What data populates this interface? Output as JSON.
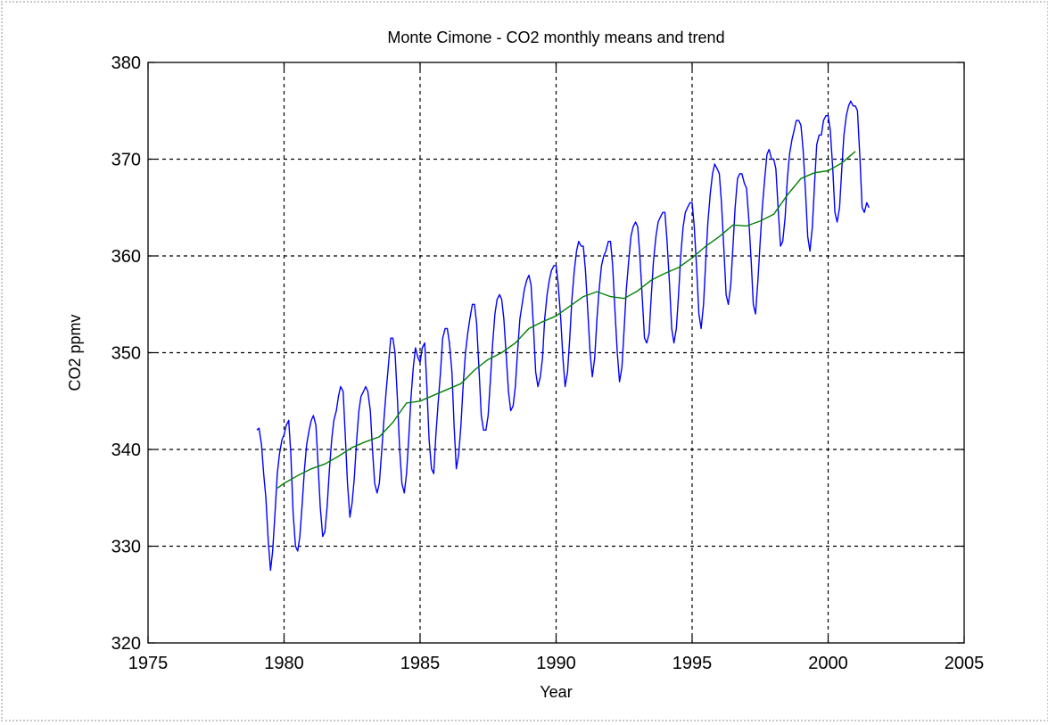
{
  "chart_data": {
    "type": "line",
    "title": "Monte Cimone - CO2 monthly means and trend",
    "xlabel": "Year",
    "ylabel": "CO2 ppmv",
    "xlim": [
      1975,
      2005
    ],
    "ylim": [
      320,
      380
    ],
    "xticks": [
      1975,
      1980,
      1985,
      1990,
      1995,
      2000,
      2005
    ],
    "yticks": [
      320,
      330,
      340,
      350,
      360,
      370,
      380
    ],
    "grid": true,
    "grid_style": "dashed",
    "legend": "none",
    "colors": {
      "monthly": "#0000ff",
      "trend": "#008000",
      "grid": "#000000"
    },
    "series": [
      {
        "key": "monthly",
        "color": "#0000ff",
        "x": [
          1979.0,
          1979.08,
          1979.17,
          1979.25,
          1979.33,
          1979.42,
          1979.5,
          1979.58,
          1979.67,
          1979.75,
          1979.83,
          1979.92,
          1980.0,
          1980.08,
          1980.17,
          1980.25,
          1980.33,
          1980.42,
          1980.5,
          1980.58,
          1980.67,
          1980.75,
          1980.83,
          1980.92,
          1981.0,
          1981.08,
          1981.17,
          1981.25,
          1981.33,
          1981.42,
          1981.5,
          1981.58,
          1981.67,
          1981.75,
          1981.83,
          1981.92,
          1982.0,
          1982.08,
          1982.17,
          1982.25,
          1982.33,
          1982.42,
          1982.5,
          1982.58,
          1982.67,
          1982.75,
          1982.83,
          1982.92,
          1983.0,
          1983.08,
          1983.17,
          1983.25,
          1983.33,
          1983.42,
          1983.5,
          1983.58,
          1983.67,
          1983.75,
          1983.83,
          1983.92,
          1984.0,
          1984.08,
          1984.17,
          1984.25,
          1984.33,
          1984.42,
          1984.5,
          1984.58,
          1984.67,
          1984.75,
          1984.83,
          1984.92,
          1985.0,
          1985.08,
          1985.17,
          1985.25,
          1985.33,
          1985.42,
          1985.5,
          1985.58,
          1985.67,
          1985.75,
          1985.83,
          1985.92,
          1986.0,
          1986.08,
          1986.17,
          1986.25,
          1986.33,
          1986.42,
          1986.5,
          1986.58,
          1986.67,
          1986.75,
          1986.83,
          1986.92,
          1987.0,
          1987.08,
          1987.17,
          1987.25,
          1987.33,
          1987.42,
          1987.5,
          1987.58,
          1987.67,
          1987.75,
          1987.83,
          1987.92,
          1988.0,
          1988.08,
          1988.17,
          1988.25,
          1988.33,
          1988.42,
          1988.5,
          1988.58,
          1988.67,
          1988.75,
          1988.83,
          1988.92,
          1989.0,
          1989.08,
          1989.17,
          1989.25,
          1989.33,
          1989.42,
          1989.5,
          1989.58,
          1989.67,
          1989.75,
          1989.83,
          1989.92,
          1990.0,
          1990.08,
          1990.17,
          1990.25,
          1990.33,
          1990.42,
          1990.5,
          1990.58,
          1990.67,
          1990.75,
          1990.83,
          1990.92,
          1991.0,
          1991.08,
          1991.17,
          1991.25,
          1991.33,
          1991.42,
          1991.5,
          1991.58,
          1991.67,
          1991.75,
          1991.83,
          1991.92,
          1992.0,
          1992.08,
          1992.17,
          1992.25,
          1992.33,
          1992.42,
          1992.5,
          1992.58,
          1992.67,
          1992.75,
          1992.83,
          1992.92,
          1993.0,
          1993.08,
          1993.17,
          1993.25,
          1993.33,
          1993.42,
          1993.5,
          1993.58,
          1993.67,
          1993.75,
          1993.83,
          1993.92,
          1994.0,
          1994.08,
          1994.17,
          1994.25,
          1994.33,
          1994.42,
          1994.5,
          1994.58,
          1994.67,
          1994.75,
          1994.83,
          1994.92,
          1995.0,
          1995.08,
          1995.17,
          1995.25,
          1995.33,
          1995.42,
          1995.5,
          1995.58,
          1995.67,
          1995.75,
          1995.83,
          1995.92,
          1996.0,
          1996.08,
          1996.17,
          1996.25,
          1996.33,
          1996.42,
          1996.5,
          1996.58,
          1996.67,
          1996.75,
          1996.83,
          1996.92,
          1997.0,
          1997.08,
          1997.17,
          1997.25,
          1997.33,
          1997.42,
          1997.5,
          1997.58,
          1997.67,
          1997.75,
          1997.83,
          1997.92,
          1998.0,
          1998.08,
          1998.17,
          1998.25,
          1998.33,
          1998.42,
          1998.5,
          1998.58,
          1998.67,
          1998.75,
          1998.83,
          1998.92,
          1999.0,
          1999.08,
          1999.17,
          1999.25,
          1999.33,
          1999.42,
          1999.5,
          1999.58,
          1999.67,
          1999.75,
          1999.83,
          1999.92,
          2000.0,
          2000.08,
          2000.17,
          2000.25,
          2000.33,
          2000.42,
          2000.5,
          2000.58,
          2000.67,
          2000.75,
          2000.83,
          2000.92,
          2001.0,
          2001.08,
          2001.17,
          2001.25,
          2001.33,
          2001.42,
          2001.5
        ],
        "y": [
          342.0,
          342.2,
          340.5,
          337.5,
          335.0,
          330.5,
          327.5,
          329.5,
          333.5,
          337.5,
          339.5,
          341.0,
          341.5,
          342.5,
          343.0,
          339.5,
          333.5,
          330.0,
          329.5,
          331.0,
          334.5,
          338.0,
          340.5,
          342.0,
          343.0,
          343.5,
          342.5,
          338.5,
          334.0,
          331.0,
          331.5,
          334.0,
          338.0,
          341.0,
          343.0,
          344.0,
          345.5,
          346.5,
          346.0,
          341.5,
          336.5,
          333.0,
          334.5,
          337.0,
          341.0,
          344.0,
          345.5,
          346.0,
          346.5,
          346.0,
          344.0,
          340.0,
          336.5,
          335.5,
          336.5,
          339.5,
          343.0,
          346.0,
          348.5,
          351.5,
          351.5,
          350.0,
          345.0,
          340.0,
          336.5,
          335.5,
          337.5,
          341.0,
          345.5,
          348.5,
          350.5,
          349.5,
          349.0,
          350.5,
          351.0,
          346.5,
          341.0,
          338.0,
          337.5,
          341.5,
          345.0,
          348.0,
          351.5,
          352.5,
          352.5,
          351.0,
          348.0,
          342.5,
          338.0,
          339.5,
          342.5,
          346.5,
          350.0,
          352.0,
          353.5,
          355.0,
          355.0,
          353.0,
          348.0,
          343.5,
          342.0,
          342.0,
          343.5,
          347.0,
          351.0,
          354.0,
          355.5,
          356.0,
          355.5,
          353.5,
          349.5,
          346.0,
          344.0,
          344.5,
          346.5,
          350.0,
          353.5,
          355.0,
          356.5,
          357.5,
          358.0,
          357.0,
          352.5,
          348.0,
          346.5,
          347.5,
          349.5,
          353.5,
          356.0,
          357.5,
          358.5,
          359.0,
          359.0,
          357.0,
          353.5,
          349.5,
          346.5,
          348.0,
          351.5,
          355.5,
          358.5,
          360.5,
          361.5,
          361.0,
          361.0,
          358.5,
          354.0,
          350.0,
          347.5,
          349.5,
          353.5,
          356.5,
          359.0,
          360.0,
          360.5,
          361.5,
          361.5,
          359.0,
          354.0,
          350.0,
          347.0,
          348.5,
          352.5,
          356.5,
          359.5,
          362.0,
          363.0,
          363.5,
          363.0,
          360.0,
          355.5,
          351.5,
          351.0,
          352.0,
          356.0,
          359.5,
          362.0,
          363.5,
          364.0,
          364.5,
          364.5,
          361.5,
          357.0,
          352.5,
          351.0,
          352.5,
          356.0,
          360.0,
          363.0,
          364.5,
          365.0,
          365.5,
          365.5,
          363.0,
          358.5,
          354.0,
          352.5,
          355.0,
          359.5,
          363.5,
          366.5,
          368.5,
          369.5,
          369.0,
          368.5,
          365.5,
          360.5,
          356.0,
          355.0,
          357.0,
          361.0,
          365.0,
          368.0,
          368.5,
          368.5,
          367.5,
          367.0,
          364.0,
          359.5,
          355.0,
          354.0,
          357.5,
          361.5,
          365.0,
          368.0,
          370.5,
          371.0,
          370.0,
          370.0,
          369.0,
          364.5,
          361.0,
          361.5,
          364.0,
          368.0,
          370.5,
          372.0,
          373.0,
          374.0,
          374.0,
          373.5,
          371.0,
          366.5,
          362.0,
          360.5,
          363.0,
          367.5,
          371.5,
          372.5,
          372.5,
          374.0,
          374.5,
          374.5,
          373.0,
          369.0,
          364.5,
          363.5,
          365.0,
          369.0,
          372.5,
          374.5,
          375.5,
          376.0,
          375.5,
          375.5,
          375.0,
          370.0,
          365.0,
          364.5,
          365.5,
          365.0
        ]
      },
      {
        "key": "trend",
        "color": "#008000",
        "x": [
          1979.75,
          1980.0,
          1980.5,
          1981.0,
          1981.5,
          1982.0,
          1982.5,
          1983.0,
          1983.5,
          1984.0,
          1984.5,
          1985.0,
          1985.5,
          1986.0,
          1986.5,
          1987.0,
          1987.5,
          1988.0,
          1988.5,
          1989.0,
          1989.5,
          1990.0,
          1990.5,
          1991.0,
          1991.5,
          1992.0,
          1992.5,
          1993.0,
          1993.5,
          1994.0,
          1994.5,
          1995.0,
          1995.5,
          1996.0,
          1996.5,
          1997.0,
          1997.5,
          1998.0,
          1998.5,
          1999.0,
          1999.5,
          2000.0,
          2000.5,
          2001.0
        ],
        "y": [
          336.0,
          336.5,
          337.3,
          338.0,
          338.5,
          339.3,
          340.2,
          340.8,
          341.3,
          342.8,
          344.8,
          345.0,
          345.6,
          346.2,
          346.8,
          348.2,
          349.3,
          350.0,
          351.0,
          352.5,
          353.2,
          353.8,
          354.8,
          355.8,
          356.3,
          355.8,
          355.6,
          356.4,
          357.5,
          358.2,
          358.8,
          359.8,
          361.0,
          362.0,
          363.2,
          363.1,
          363.6,
          364.3,
          366.3,
          368.0,
          368.6,
          368.8,
          369.6,
          370.8
        ]
      }
    ]
  }
}
